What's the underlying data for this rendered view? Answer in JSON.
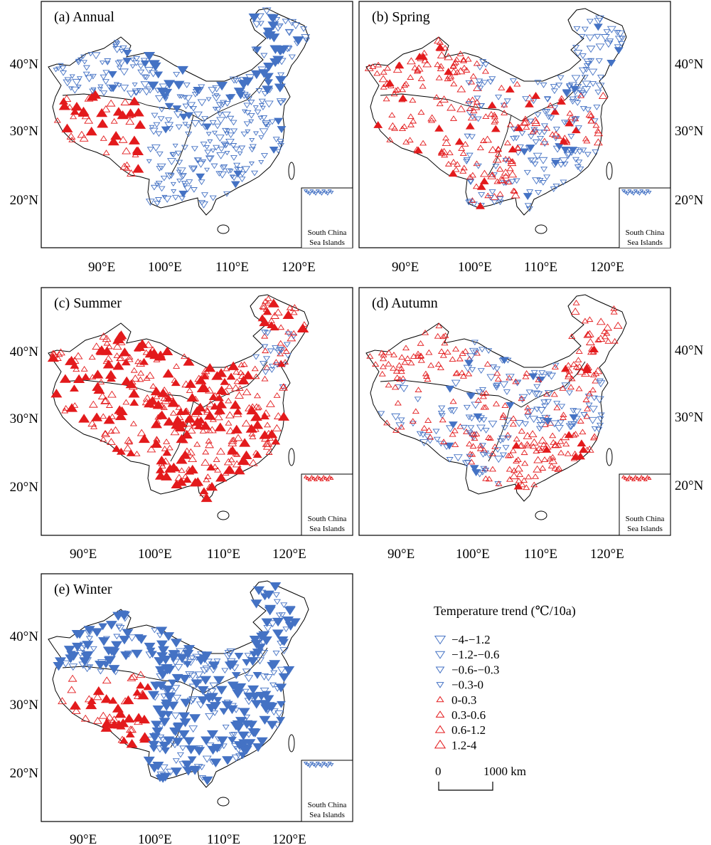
{
  "panels": [
    {
      "id": "a",
      "label": "(a) Annual",
      "pattern": "annual"
    },
    {
      "id": "b",
      "label": "(b) Spring",
      "pattern": "spring"
    },
    {
      "id": "c",
      "label": "(c) Summer",
      "pattern": "summer"
    },
    {
      "id": "d",
      "label": "(d) Autumn",
      "pattern": "autumn"
    },
    {
      "id": "e",
      "label": "(e) Winter",
      "pattern": "winter"
    }
  ],
  "axes": {
    "lon_ticks": [
      "90°E",
      "100°E",
      "110°E",
      "120°E"
    ],
    "lat_ticks": [
      "40°N",
      "30°N",
      "20°N"
    ]
  },
  "inset": {
    "line1": "South China",
    "line2": "Sea Islands"
  },
  "legend": {
    "title": "Temperature trend (℃/10a)",
    "items": [
      {
        "label": "−4-−1.2",
        "sign": "down",
        "filled": false,
        "size": 1.0
      },
      {
        "label": "−1.2-−0.6",
        "sign": "down",
        "filled": false,
        "size": 0.78
      },
      {
        "label": "−0.6-−0.3",
        "sign": "down",
        "filled": false,
        "size": 0.58
      },
      {
        "label": "−0.3-0",
        "sign": "down",
        "filled": false,
        "size": 0.4
      },
      {
        "label": "0-0.3",
        "sign": "up",
        "filled": false,
        "size": 0.4
      },
      {
        "label": "0.3-0.6",
        "sign": "up",
        "filled": false,
        "size": 0.58
      },
      {
        "label": "0.6-1.2",
        "sign": "up",
        "filled": false,
        "size": 0.78
      },
      {
        "label": "1.2-4",
        "sign": "up",
        "filled": false,
        "size": 1.0
      }
    ]
  },
  "scale_bar": {
    "start": "0",
    "end": "1000 km"
  },
  "colors": {
    "warming": "#e31a1c",
    "cooling": "#4472c4",
    "outline": "#000000"
  }
}
